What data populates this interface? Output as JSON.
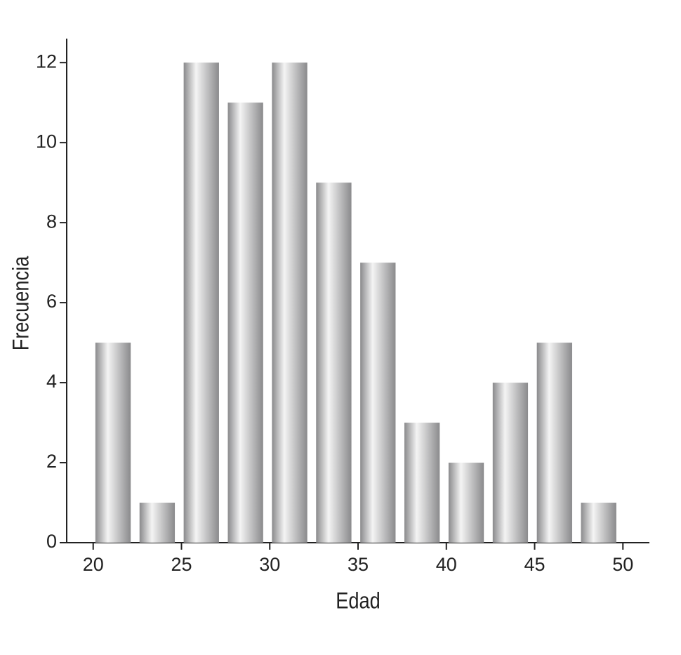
{
  "chart_data": {
    "type": "histogram",
    "x_label": "Edad",
    "y_label": "Frecuencia",
    "bins": [
      20,
      22.5,
      25,
      27.5,
      30,
      32.5,
      35,
      37.5,
      40,
      42.5,
      45,
      47.5,
      50
    ],
    "values": [
      5,
      1,
      12,
      11,
      12,
      9,
      7,
      3,
      2,
      4,
      5,
      1
    ],
    "color": "#8a8a8c",
    "xlim": [
      18.5,
      51.5
    ],
    "xticks": [
      20,
      25,
      30,
      35,
      40,
      45,
      50
    ],
    "ylim": [
      0,
      12.6
    ],
    "yticks": [
      0,
      2,
      4,
      6,
      8,
      10,
      12
    ],
    "grid": false
  }
}
